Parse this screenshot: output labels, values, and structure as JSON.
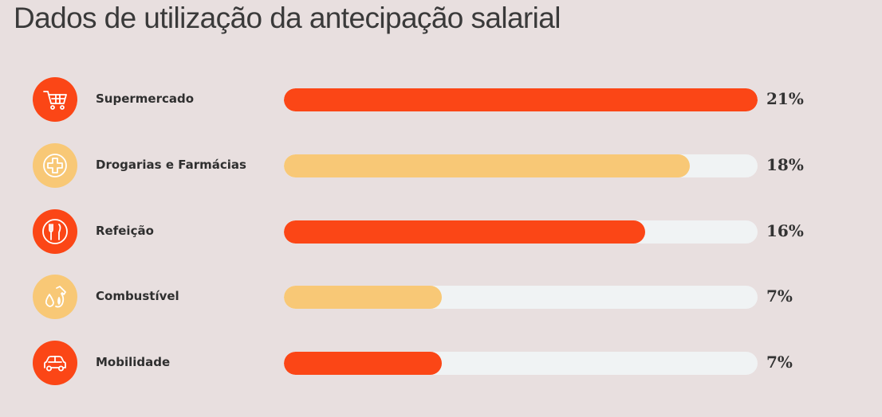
{
  "title": "Dados de utilização da antecipação salarial",
  "colors": {
    "orange": "#fb4616",
    "yellow": "#f8c876",
    "track": "#f0f3f4",
    "background": "#e8dfdf"
  },
  "chart_data": {
    "type": "bar",
    "orientation": "horizontal",
    "title": "Dados de utilização da antecipação salarial",
    "categories": [
      "Supermercado",
      "Drogarias e Farmácias",
      "Refeição",
      "Combustível",
      "Mobilidade"
    ],
    "values": [
      21,
      18,
      16,
      7,
      7
    ],
    "value_labels": [
      "21%",
      "18%",
      "16%",
      "7%",
      "7%"
    ],
    "xlim": [
      0,
      21
    ],
    "grid": false,
    "legend": "none"
  },
  "items": [
    {
      "label": "Supermercado",
      "value_label": "21%",
      "icon": "shopping-cart-icon",
      "color": "#fb4616"
    },
    {
      "label": "Drogarias e Farmácias",
      "value_label": "18%",
      "icon": "pharmacy-cross-icon",
      "color": "#f8c876"
    },
    {
      "label": "Refeição",
      "value_label": "16%",
      "icon": "cutlery-icon",
      "color": "#fb4616"
    },
    {
      "label": "Combustível",
      "value_label": "7%",
      "icon": "fuel-pump-icon",
      "color": "#f8c876"
    },
    {
      "label": "Mobilidade",
      "value_label": "7%",
      "icon": "car-icon",
      "color": "#fb4616"
    }
  ]
}
